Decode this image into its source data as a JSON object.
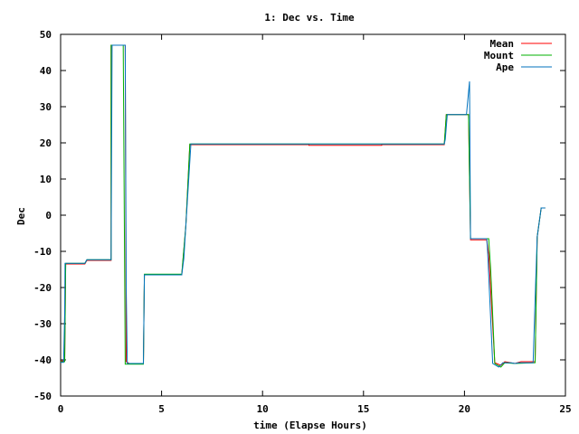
{
  "chart_data": {
    "type": "line",
    "title": "1: Dec vs. Time",
    "xlabel": "time (Elapse Hours)",
    "ylabel": "Dec",
    "xlim": [
      0,
      25
    ],
    "ylim": [
      -50,
      50
    ],
    "xticks": [
      0,
      5,
      10,
      15,
      20,
      25
    ],
    "yticks": [
      -50,
      -40,
      -30,
      -20,
      -10,
      0,
      10,
      20,
      30,
      40,
      50
    ],
    "grid": false,
    "legend_position": "top-right",
    "series": [
      {
        "name": "Mean",
        "color": "#ff0000",
        "points": [
          [
            0.0,
            -40.3
          ],
          [
            0.2,
            -40.3
          ],
          [
            0.25,
            -13.5
          ],
          [
            1.2,
            -13.5
          ],
          [
            1.3,
            -12.5
          ],
          [
            2.5,
            -12.5
          ],
          [
            2.5,
            47
          ],
          [
            3.2,
            47
          ],
          [
            3.25,
            -40.5
          ],
          [
            3.4,
            -41
          ],
          [
            4.1,
            -41
          ],
          [
            4.15,
            -16.5
          ],
          [
            6.0,
            -16.5
          ],
          [
            6.2,
            -3
          ],
          [
            6.4,
            19.5
          ],
          [
            12.3,
            19.5
          ],
          [
            12.3,
            19.3
          ],
          [
            15.9,
            19.3
          ],
          [
            15.9,
            19.5
          ],
          [
            19.0,
            19.5
          ],
          [
            19.1,
            27.8
          ],
          [
            20.2,
            27.8
          ],
          [
            20.3,
            -6.8
          ],
          [
            21.1,
            -6.8
          ],
          [
            21.2,
            -10.8
          ],
          [
            21.5,
            -40.8
          ],
          [
            21.8,
            -41.5
          ],
          [
            22.0,
            -40.5
          ],
          [
            22.5,
            -41
          ],
          [
            22.8,
            -40.5
          ],
          [
            23.5,
            -40.5
          ],
          [
            23.6,
            -6
          ],
          [
            23.8,
            2
          ],
          [
            24.0,
            2
          ]
        ]
      },
      {
        "name": "Mount",
        "color": "#00b000",
        "points": [
          [
            0.0,
            -40.5
          ],
          [
            0.2,
            -40.5
          ],
          [
            0.25,
            -13.3
          ],
          [
            1.2,
            -13.3
          ],
          [
            1.3,
            -12.3
          ],
          [
            2.5,
            -12.3
          ],
          [
            2.5,
            47
          ],
          [
            3.1,
            47
          ],
          [
            3.2,
            -41.2
          ],
          [
            3.4,
            -41.2
          ],
          [
            4.1,
            -41.2
          ],
          [
            4.15,
            -16.3
          ],
          [
            6.0,
            -16.3
          ],
          [
            6.2,
            -3
          ],
          [
            6.4,
            19.7
          ],
          [
            19.0,
            19.7
          ],
          [
            19.1,
            27.8
          ],
          [
            20.2,
            27.8
          ],
          [
            20.3,
            -6.5
          ],
          [
            21.2,
            -6.5
          ],
          [
            21.3,
            -15
          ],
          [
            21.5,
            -41
          ],
          [
            21.8,
            -42
          ],
          [
            22.0,
            -40.8
          ],
          [
            22.5,
            -41
          ],
          [
            23.5,
            -40.8
          ],
          [
            23.6,
            -6
          ],
          [
            23.8,
            2
          ],
          [
            24.0,
            2
          ]
        ]
      },
      {
        "name": "Ape",
        "color": "#0072bd",
        "points": [
          [
            0.0,
            -40.7
          ],
          [
            0.15,
            -40.7
          ],
          [
            0.2,
            -27
          ],
          [
            0.22,
            -13.3
          ],
          [
            1.2,
            -13.3
          ],
          [
            1.3,
            -12.3
          ],
          [
            2.5,
            -12.3
          ],
          [
            2.55,
            47
          ],
          [
            3.2,
            47
          ],
          [
            3.25,
            -20
          ],
          [
            3.3,
            -41
          ],
          [
            4.1,
            -41
          ],
          [
            4.15,
            -16.5
          ],
          [
            6.0,
            -16.5
          ],
          [
            6.1,
            -12
          ],
          [
            6.2,
            -3
          ],
          [
            6.45,
            19.7
          ],
          [
            19.0,
            19.7
          ],
          [
            19.05,
            21
          ],
          [
            19.15,
            27.8
          ],
          [
            20.1,
            27.8
          ],
          [
            20.25,
            37
          ],
          [
            20.3,
            -6.5
          ],
          [
            21.1,
            -6.5
          ],
          [
            21.15,
            -10.5
          ],
          [
            21.4,
            -41
          ],
          [
            21.7,
            -42
          ],
          [
            21.9,
            -40.8
          ],
          [
            22.3,
            -40.8
          ],
          [
            22.5,
            -41
          ],
          [
            22.7,
            -40.8
          ],
          [
            23.4,
            -40.8
          ],
          [
            23.5,
            -23
          ],
          [
            23.6,
            -6
          ],
          [
            23.8,
            2
          ],
          [
            24.0,
            2
          ]
        ]
      }
    ]
  }
}
